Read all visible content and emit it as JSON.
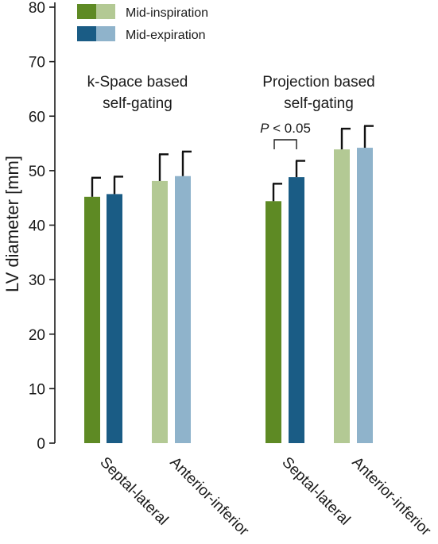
{
  "chart_data": {
    "type": "bar",
    "ylabel": "LV diameter [mm]",
    "ylim": [
      0,
      80
    ],
    "yticks": [
      "0",
      "10",
      "20",
      "30",
      "40",
      "50",
      "60",
      "70",
      "80"
    ],
    "groups": [
      {
        "title_line1": "k-Space based",
        "title_line2": "self-gating"
      },
      {
        "title_line1": "Projection based",
        "title_line2": "self-gating"
      }
    ],
    "categories": [
      "Septal-lateral",
      "Anterior-inferior",
      "Septal-lateral",
      "Anterior-inferior"
    ],
    "series": [
      {
        "name": "Mid-inspiration",
        "values": [
          45.2,
          48.1,
          44.4,
          53.9
        ],
        "errors": [
          3.5,
          4.9,
          3.2,
          3.8
        ]
      },
      {
        "name": "Mid-expiration",
        "values": [
          45.7,
          49.0,
          48.8,
          54.2
        ],
        "errors": [
          3.2,
          4.5,
          3.0,
          4.0
        ]
      }
    ],
    "colors": {
      "inspiration_dark": "#5e8a24",
      "inspiration_light": "#b3c994",
      "expiration_dark": "#1a5c85",
      "expiration_light": "#8fb3cb",
      "error_bar": "#111111"
    },
    "legend": {
      "position": "top-left",
      "items": [
        "Mid-inspiration",
        "Mid-expiration"
      ]
    },
    "annotation": {
      "italic": "P",
      "text": " < 0.05"
    },
    "grid": false
  }
}
